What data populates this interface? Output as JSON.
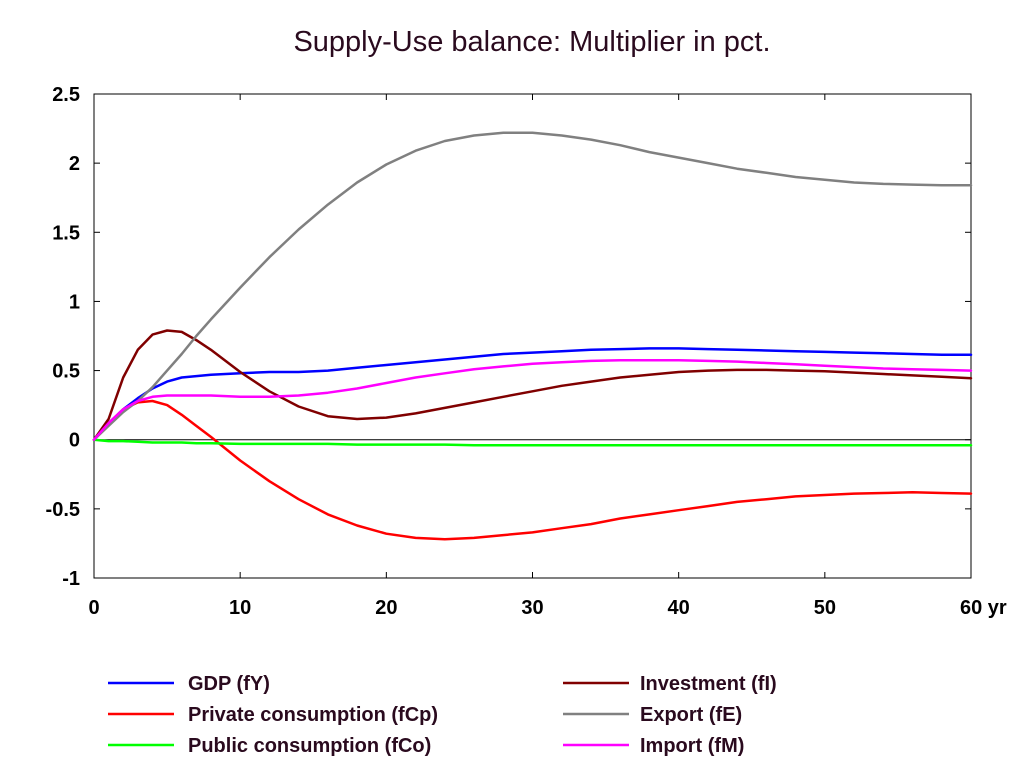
{
  "chart_data": {
    "type": "line",
    "title": "Supply-Use balance: Multiplier in pct.",
    "xlabel": "",
    "ylabel": "",
    "x_unit": "yr",
    "xlim": [
      0,
      60
    ],
    "ylim": [
      -1,
      2.5
    ],
    "x_ticks": [
      0,
      10,
      20,
      30,
      40,
      50,
      60
    ],
    "x_tick_labels": [
      "0",
      "10",
      "20",
      "30",
      "40",
      "50",
      "60 yr"
    ],
    "y_ticks": [
      -1,
      -0.5,
      0,
      0.5,
      1,
      1.5,
      2,
      2.5
    ],
    "y_tick_labels": [
      "-1",
      "-0.5",
      "0",
      "0.5",
      "1",
      "1.5",
      "2",
      "2.5"
    ],
    "grid": false,
    "legend_position": "bottom",
    "x": [
      0,
      1,
      2,
      3,
      4,
      5,
      6,
      7,
      8,
      10,
      12,
      14,
      16,
      18,
      20,
      22,
      24,
      26,
      28,
      30,
      32,
      34,
      36,
      38,
      40,
      42,
      44,
      46,
      48,
      50,
      52,
      54,
      56,
      58,
      60
    ],
    "series": [
      {
        "name": "GDP (fY)",
        "color": "#0000ff",
        "values": [
          0,
          0.12,
          0.22,
          0.3,
          0.37,
          0.42,
          0.45,
          0.46,
          0.47,
          0.48,
          0.49,
          0.49,
          0.5,
          0.52,
          0.54,
          0.56,
          0.58,
          0.6,
          0.62,
          0.63,
          0.64,
          0.65,
          0.655,
          0.66,
          0.66,
          0.655,
          0.65,
          0.645,
          0.64,
          0.635,
          0.63,
          0.625,
          0.62,
          0.615,
          0.615
        ]
      },
      {
        "name": "Private consumption (fCp)",
        "color": "#ff0000",
        "values": [
          0,
          0.12,
          0.22,
          0.27,
          0.28,
          0.25,
          0.18,
          0.1,
          0.02,
          -0.15,
          -0.3,
          -0.43,
          -0.54,
          -0.62,
          -0.68,
          -0.71,
          -0.72,
          -0.71,
          -0.69,
          -0.67,
          -0.64,
          -0.61,
          -0.57,
          -0.54,
          -0.51,
          -0.48,
          -0.45,
          -0.43,
          -0.41,
          -0.4,
          -0.39,
          -0.385,
          -0.38,
          -0.385,
          -0.39
        ]
      },
      {
        "name": "Public consumption (fCo)",
        "color": "#00ff00",
        "values": [
          0,
          -0.01,
          -0.01,
          -0.015,
          -0.02,
          -0.02,
          -0.02,
          -0.025,
          -0.025,
          -0.03,
          -0.03,
          -0.03,
          -0.03,
          -0.035,
          -0.035,
          -0.035,
          -0.035,
          -0.04,
          -0.04,
          -0.04,
          -0.04,
          -0.04,
          -0.04,
          -0.04,
          -0.04,
          -0.04,
          -0.04,
          -0.04,
          -0.04,
          -0.04,
          -0.04,
          -0.04,
          -0.04,
          -0.04,
          -0.04
        ]
      },
      {
        "name": "Investment (fI)",
        "color": "#800000",
        "values": [
          0,
          0.15,
          0.45,
          0.65,
          0.76,
          0.79,
          0.78,
          0.72,
          0.65,
          0.49,
          0.35,
          0.24,
          0.17,
          0.15,
          0.16,
          0.19,
          0.23,
          0.27,
          0.31,
          0.35,
          0.39,
          0.42,
          0.45,
          0.47,
          0.49,
          0.5,
          0.505,
          0.505,
          0.5,
          0.495,
          0.485,
          0.475,
          0.465,
          0.455,
          0.445
        ]
      },
      {
        "name": "Export (fE)",
        "color": "#808080",
        "values": [
          0,
          0.1,
          0.2,
          0.28,
          0.38,
          0.5,
          0.62,
          0.75,
          0.87,
          1.1,
          1.32,
          1.52,
          1.7,
          1.86,
          1.99,
          2.09,
          2.16,
          2.2,
          2.22,
          2.22,
          2.2,
          2.17,
          2.13,
          2.08,
          2.04,
          2.0,
          1.96,
          1.93,
          1.9,
          1.88,
          1.86,
          1.85,
          1.845,
          1.84,
          1.84
        ]
      },
      {
        "name": "Import (fM)",
        "color": "#ff00ff",
        "values": [
          0,
          0.12,
          0.22,
          0.28,
          0.31,
          0.32,
          0.32,
          0.32,
          0.32,
          0.31,
          0.31,
          0.32,
          0.34,
          0.37,
          0.41,
          0.45,
          0.48,
          0.51,
          0.53,
          0.55,
          0.56,
          0.57,
          0.575,
          0.575,
          0.575,
          0.57,
          0.565,
          0.555,
          0.545,
          0.535,
          0.525,
          0.515,
          0.51,
          0.505,
          0.5
        ]
      }
    ]
  }
}
